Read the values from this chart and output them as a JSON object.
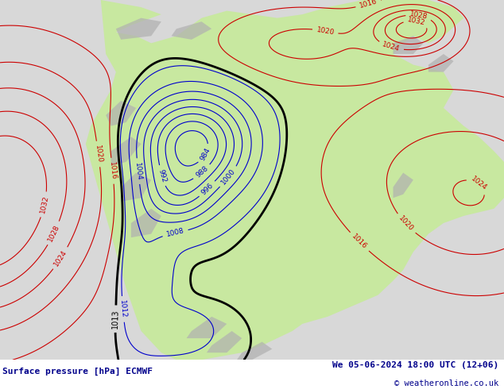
{
  "title_left": "Surface pressure [hPa] ECMWF",
  "title_right": "We 05-06-2024 18:00 UTC (12+06)",
  "copyright": "© weatheronline.co.uk",
  "bg_color": "#ffffff",
  "ocean_color": "#d8d8d8",
  "land_color": "#c8e8a0",
  "gray_land_color": "#b0b0b0",
  "bottom_bar_color": "#e8e8e8",
  "blue_color": "#0000cc",
  "red_color": "#cc0000",
  "black_color": "#000000",
  "bottom_text_color": "#00008b",
  "fig_width": 6.34,
  "fig_height": 4.9,
  "dpi": 100,
  "label_fontsize": 8,
  "copyright_fontsize": 7.5,
  "contour_label_fontsize": 6.5
}
